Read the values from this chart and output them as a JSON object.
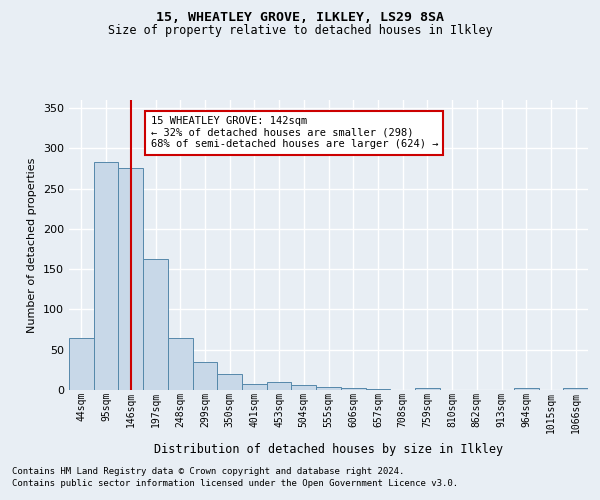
{
  "title1": "15, WHEATLEY GROVE, ILKLEY, LS29 8SA",
  "title2": "Size of property relative to detached houses in Ilkley",
  "xlabel": "Distribution of detached houses by size in Ilkley",
  "ylabel": "Number of detached properties",
  "categories": [
    "44sqm",
    "95sqm",
    "146sqm",
    "197sqm",
    "248sqm",
    "299sqm",
    "350sqm",
    "401sqm",
    "453sqm",
    "504sqm",
    "555sqm",
    "606sqm",
    "657sqm",
    "708sqm",
    "759sqm",
    "810sqm",
    "862sqm",
    "913sqm",
    "964sqm",
    "1015sqm",
    "1066sqm"
  ],
  "values": [
    65,
    283,
    275,
    163,
    65,
    35,
    20,
    8,
    10,
    6,
    4,
    3,
    1,
    0,
    3,
    0,
    0,
    0,
    2,
    0,
    2
  ],
  "bar_color": "#c8d8e8",
  "bar_edge_color": "#5588aa",
  "vline_x_idx": 2,
  "vline_color": "#cc0000",
  "annotation_text": "15 WHEATLEY GROVE: 142sqm\n← 32% of detached houses are smaller (298)\n68% of semi-detached houses are larger (624) →",
  "annotation_box_color": "#ffffff",
  "annotation_box_edge_color": "#cc0000",
  "ylim": [
    0,
    360
  ],
  "yticks": [
    0,
    50,
    100,
    150,
    200,
    250,
    300,
    350
  ],
  "footer1": "Contains HM Land Registry data © Crown copyright and database right 2024.",
  "footer2": "Contains public sector information licensed under the Open Government Licence v3.0.",
  "background_color": "#e8eef4",
  "plot_bg_color": "#e8eef4",
  "grid_color": "#ffffff"
}
